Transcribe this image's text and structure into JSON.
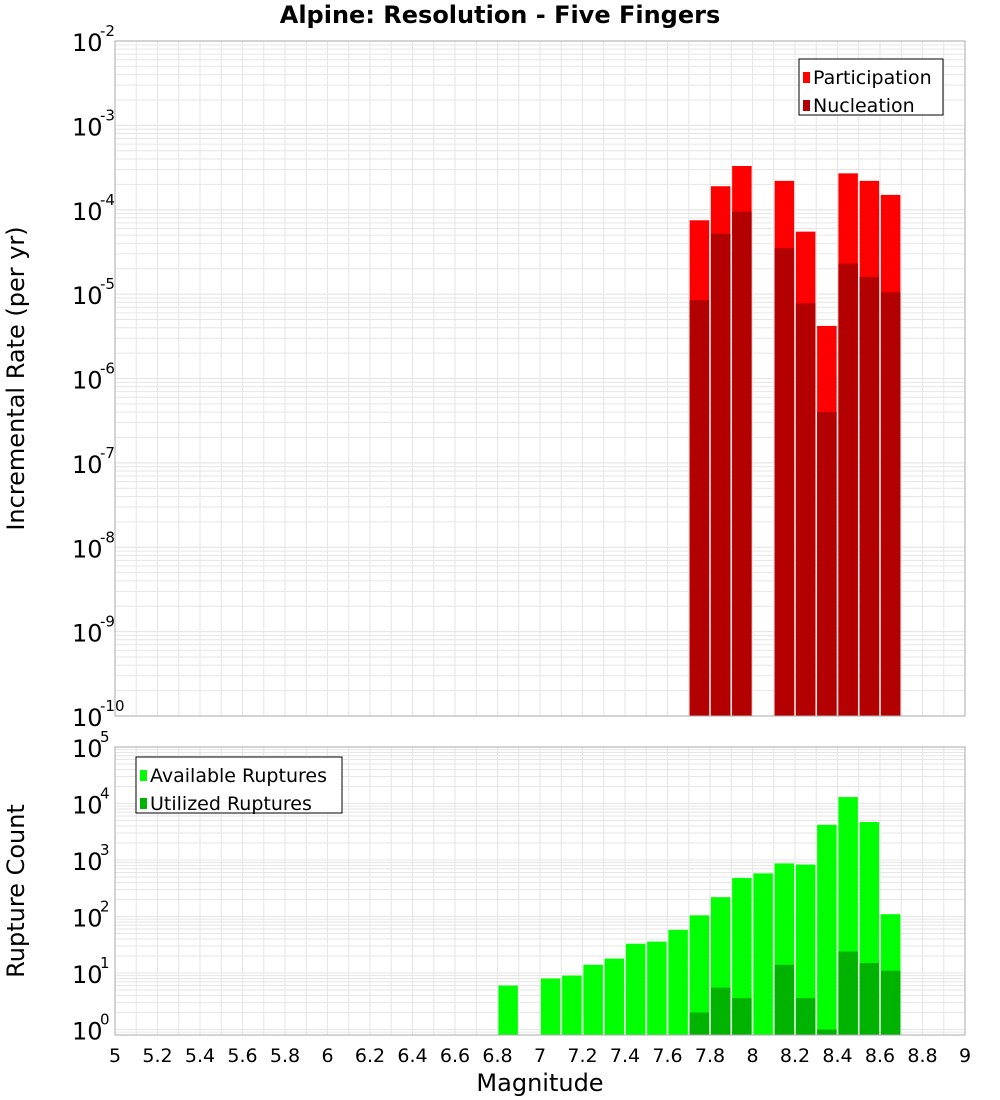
{
  "title": "Alpine: Resolution - Five Fingers",
  "xlabel": "Magnitude",
  "colors": {
    "participation": "#ff0000",
    "nucleation": "#b30000",
    "available": "#00ff00",
    "utilized": "#00b300",
    "grid": "#e6e6e6",
    "frame": "#aaaaaa"
  },
  "chart_data": [
    {
      "type": "bar",
      "panel": "top",
      "ylabel": "Incremental Rate (per yr)",
      "yscale": "log",
      "xlim": [
        5,
        9
      ],
      "ylim": [
        1e-10,
        0.01
      ],
      "grid": true,
      "legend_position": "top-right",
      "x_ticks": [
        "5",
        "5.2",
        "5.4",
        "5.6",
        "5.8",
        "6",
        "6.2",
        "6.4",
        "6.6",
        "6.8",
        "7",
        "7.2",
        "7.4",
        "7.6",
        "7.8",
        "8",
        "8.2",
        "8.4",
        "8.6",
        "8.8",
        "9"
      ],
      "y_tick_exponents": [
        "-10",
        "-9",
        "-8",
        "-7",
        "-6",
        "-5",
        "-4",
        "-3",
        "-2"
      ],
      "x": [
        7.75,
        7.85,
        7.95,
        8.15,
        8.25,
        8.35,
        8.45,
        8.55,
        8.65
      ],
      "series": [
        {
          "name": "Participation",
          "values": [
            7.5e-05,
            0.00019,
            0.00033,
            0.00022,
            5.5e-05,
            4.2e-06,
            0.00027,
            0.00022,
            0.00015
          ]
        },
        {
          "name": "Nucleation",
          "values": [
            8.5e-06,
            5.2e-05,
            9.5e-05,
            3.5e-05,
            7.8e-06,
            4e-07,
            2.3e-05,
            1.6e-05,
            1.05e-05
          ]
        }
      ]
    },
    {
      "type": "bar",
      "panel": "bottom",
      "ylabel": "Rupture Count",
      "yscale": "log",
      "xlim": [
        5,
        9
      ],
      "ylim": [
        0.8,
        100000
      ],
      "grid": true,
      "legend_position": "top-left",
      "y_tick_exponents": [
        "0",
        "1",
        "2",
        "3",
        "4",
        "5"
      ],
      "x": [
        6.85,
        7.05,
        7.15,
        7.25,
        7.35,
        7.45,
        7.55,
        7.65,
        7.75,
        7.85,
        7.95,
        8.05,
        8.15,
        8.25,
        8.35,
        8.45,
        8.55,
        8.65
      ],
      "series": [
        {
          "name": "Available Ruptures",
          "values": [
            6,
            8,
            9,
            14,
            18,
            33,
            36,
            58,
            105,
            220,
            480,
            580,
            870,
            830,
            4200,
            13000,
            4700,
            110
          ]
        },
        {
          "name": "Utilized Ruptures",
          "values": [
            0,
            0,
            0,
            0,
            0,
            0,
            0,
            0,
            2,
            5.5,
            3.6,
            0,
            14,
            3.6,
            1,
            24,
            15,
            11
          ]
        }
      ]
    }
  ]
}
